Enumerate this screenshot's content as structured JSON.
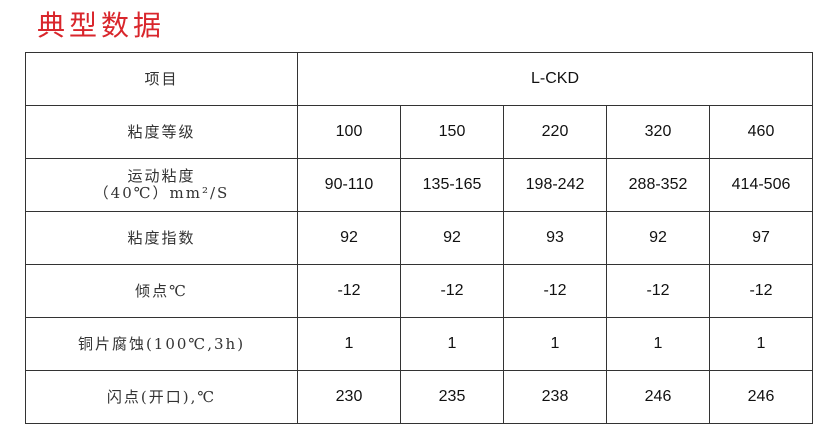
{
  "title": "典型数据",
  "table": {
    "header": {
      "label": "项目",
      "group": "L-CKD"
    },
    "rows": [
      {
        "label": "粘度等级",
        "values": [
          "100",
          "150",
          "220",
          "320",
          "460"
        ]
      },
      {
        "label": "运动粘度",
        "label2": "（40℃）mm²/S",
        "values": [
          "90-110",
          "135-165",
          "198-242",
          "288-352",
          "414-506"
        ]
      },
      {
        "label": "粘度指数",
        "values": [
          "92",
          "92",
          "93",
          "92",
          "97"
        ]
      },
      {
        "label": "倾点℃",
        "values": [
          "-12",
          "-12",
          "-12",
          "-12",
          "-12"
        ]
      },
      {
        "label": "铜片腐蚀(100℃,3h)",
        "values": [
          "1",
          "1",
          "1",
          "1",
          "1"
        ]
      },
      {
        "label": "闪点(开口),℃",
        "values": [
          "230",
          "235",
          "238",
          "246",
          "246"
        ]
      }
    ]
  },
  "colors": {
    "title": "#d9262c",
    "border": "#333333"
  }
}
